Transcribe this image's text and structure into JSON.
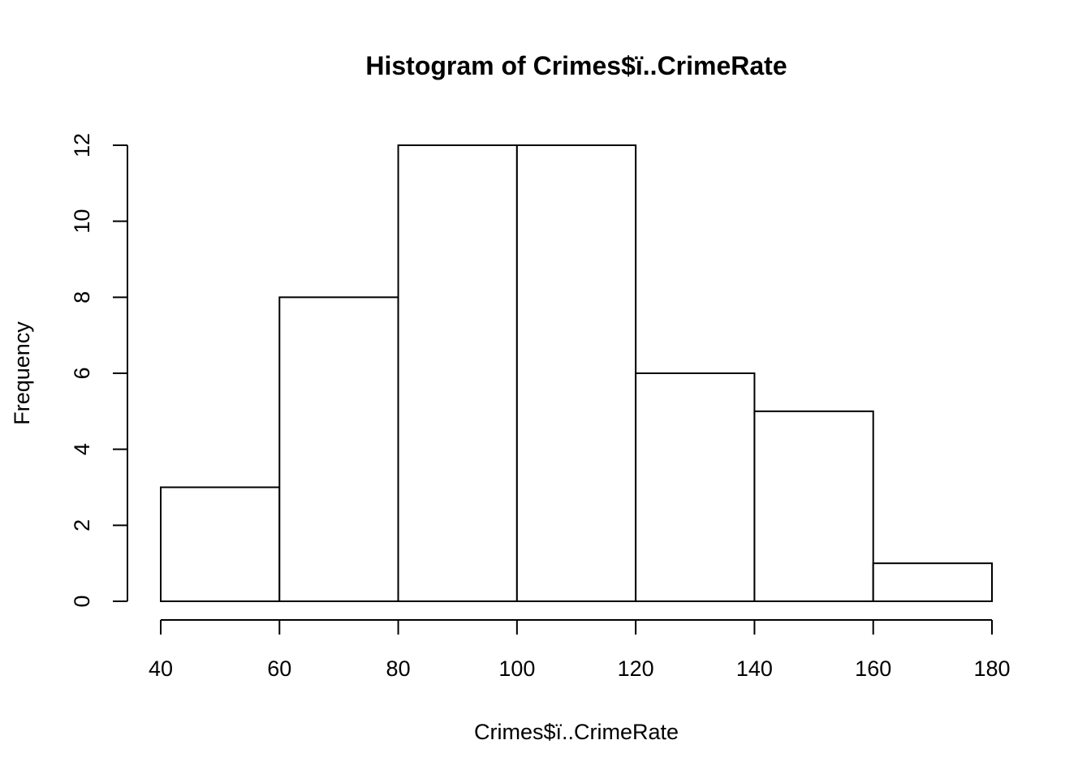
{
  "chart_data": {
    "type": "bar",
    "title": "Histogram of Crimes$ï..CrimeRate",
    "xlabel": "Crimes$ï..CrimeRate",
    "ylabel": "Frequency",
    "bins": [
      {
        "from": 40,
        "to": 60,
        "count": 3
      },
      {
        "from": 60,
        "to": 80,
        "count": 8
      },
      {
        "from": 80,
        "to": 100,
        "count": 12
      },
      {
        "from": 100,
        "to": 120,
        "count": 12
      },
      {
        "from": 120,
        "to": 140,
        "count": 6
      },
      {
        "from": 140,
        "to": 160,
        "count": 5
      },
      {
        "from": 160,
        "to": 180,
        "count": 1
      }
    ],
    "xlim": [
      40,
      180
    ],
    "ylim": [
      0,
      12
    ],
    "x_ticks": [
      40,
      60,
      80,
      100,
      120,
      140,
      160,
      180
    ],
    "y_ticks": [
      0,
      2,
      4,
      6,
      8,
      10,
      12
    ],
    "colors": {
      "bar_fill": "#ffffff",
      "bar_stroke": "#000000"
    },
    "grid": false
  }
}
